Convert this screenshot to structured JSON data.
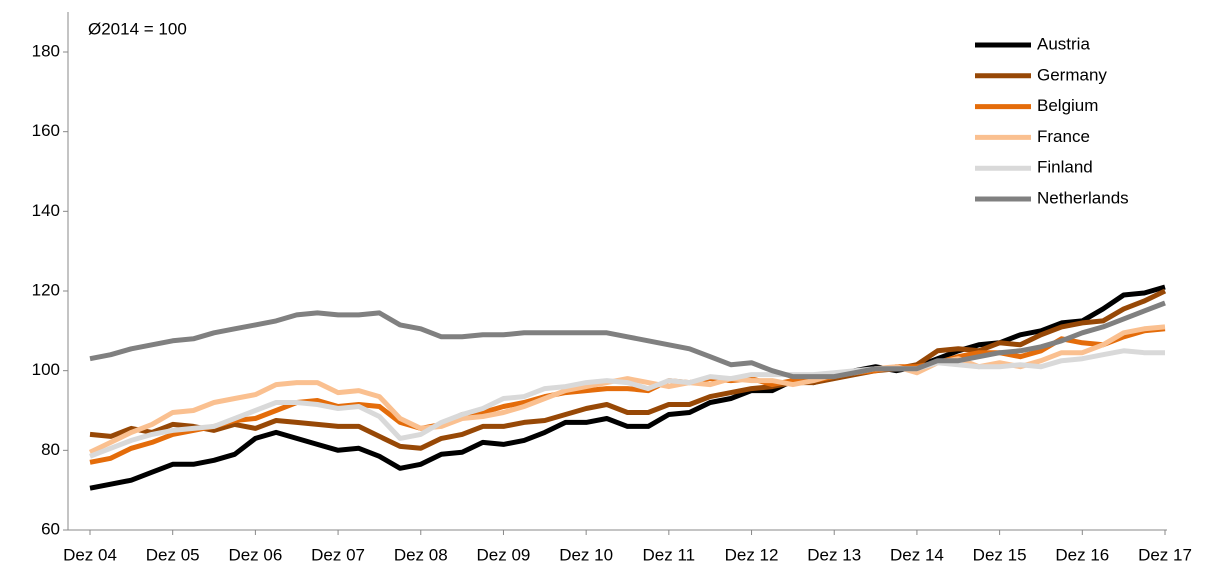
{
  "chart_data": {
    "type": "line",
    "annotation": "Ø2014 = 100",
    "categories": [
      "Dez 04",
      null,
      null,
      null,
      "Dez 05",
      null,
      null,
      null,
      "Dez 06",
      null,
      null,
      null,
      "Dez 07",
      null,
      null,
      null,
      "Dez 08",
      null,
      null,
      null,
      "Dez 09",
      null,
      null,
      null,
      "Dez 10",
      null,
      null,
      null,
      "Dez 11",
      null,
      null,
      null,
      "Dez 12",
      null,
      null,
      null,
      "Dez 13",
      null,
      null,
      null,
      "Dez 14",
      null,
      null,
      null,
      "Dez 15",
      null,
      null,
      null,
      "Dez 16",
      null,
      null,
      null,
      "Dez 17"
    ],
    "series": [
      {
        "name": "Austria",
        "color": "#000000",
        "values": [
          70.5,
          71.5,
          72.5,
          74.5,
          76.5,
          76.5,
          77.5,
          79,
          83,
          84.5,
          83,
          81.5,
          80,
          80.5,
          78.5,
          75.5,
          76.5,
          79,
          79.5,
          82,
          81.5,
          82.5,
          84.5,
          87,
          87,
          88,
          86,
          86,
          89,
          89.5,
          92,
          93,
          95,
          95,
          97.5,
          97,
          98.5,
          100,
          101,
          100,
          101,
          103,
          105,
          106.5,
          107,
          109,
          110,
          112,
          112.5,
          115.5,
          119,
          119.5,
          121
        ]
      },
      {
        "name": "Germany",
        "color": "#974806",
        "values": [
          84,
          83.5,
          85.5,
          84.5,
          86.5,
          86,
          85,
          86.5,
          85.5,
          87.5,
          87,
          86.5,
          86,
          86,
          83.5,
          81,
          80.5,
          83,
          84,
          86,
          86,
          87,
          87.5,
          89,
          90.5,
          91.5,
          89.5,
          89.5,
          91.5,
          91.5,
          93.5,
          94.5,
          95.5,
          96,
          97,
          97,
          98,
          99,
          100,
          100.5,
          101.5,
          105,
          105.5,
          105,
          107,
          106.5,
          109,
          111,
          112,
          112.5,
          115.5,
          117.5,
          120
        ]
      },
      {
        "name": "Belgium",
        "color": "#e46c0a",
        "values": [
          77,
          78,
          80.5,
          82,
          84,
          85,
          86,
          87.5,
          88,
          90,
          92,
          92.5,
          91,
          91.5,
          91,
          87,
          85.5,
          86.5,
          89,
          89.5,
          91,
          92,
          93.5,
          94.5,
          95,
          95.5,
          95.5,
          95,
          97.5,
          97,
          98,
          97.5,
          98,
          96.5,
          97.5,
          97.5,
          98.5,
          99.5,
          100,
          101,
          101,
          102,
          103.5,
          104.5,
          104.5,
          103.5,
          105,
          108,
          107,
          106.5,
          108.5,
          110,
          110.5
        ]
      },
      {
        "name": "France",
        "color": "#fac090",
        "values": [
          79.5,
          82,
          84.5,
          86.5,
          89.5,
          90,
          92,
          93,
          94,
          96.5,
          97,
          97,
          94.5,
          95,
          93.5,
          88,
          85.5,
          86,
          88,
          88.5,
          89.5,
          91,
          93,
          95,
          96,
          97,
          98,
          97,
          96,
          97,
          96.5,
          98,
          97.5,
          97.5,
          96.5,
          97.5,
          99,
          99.5,
          100.5,
          101,
          99.5,
          102,
          103,
          101,
          102,
          101,
          102.5,
          104.5,
          104.5,
          106.5,
          109.5,
          110.5,
          111
        ]
      },
      {
        "name": "Finland",
        "color": "#d9d9d9",
        "values": [
          78.5,
          80.5,
          82.5,
          84,
          85,
          85.5,
          86,
          88,
          90,
          92,
          92,
          91.5,
          90.5,
          91,
          88.5,
          83,
          84,
          87,
          89,
          90.5,
          93,
          93.5,
          95.5,
          96,
          97,
          97.5,
          97,
          95.5,
          97.5,
          97,
          98.5,
          98,
          99,
          99,
          99,
          99,
          99.5,
          100,
          100.5,
          100.5,
          100.5,
          102,
          101.5,
          101,
          101,
          101.5,
          101,
          102.5,
          103,
          104,
          105,
          104.5,
          104.5
        ]
      },
      {
        "name": "Netherlands",
        "color": "#808080",
        "values": [
          103,
          104,
          105.5,
          106.5,
          107.5,
          108,
          109.5,
          110.5,
          111.5,
          112.5,
          114,
          114.5,
          114,
          114,
          114.5,
          111.5,
          110.5,
          108.5,
          108.5,
          109,
          109,
          109.5,
          109.5,
          109.5,
          109.5,
          109.5,
          108.5,
          107.5,
          106.5,
          105.5,
          103.5,
          101.5,
          102,
          100,
          98.5,
          98.5,
          98.5,
          99.5,
          100.5,
          100.5,
          100.5,
          102.5,
          102.5,
          103.5,
          104.5,
          105,
          106,
          107.5,
          109.5,
          111,
          113,
          115,
          117
        ]
      }
    ],
    "ylim": [
      60,
      180
    ],
    "yticks": [
      60,
      80,
      100,
      120,
      140,
      160,
      180
    ],
    "grid": false,
    "legend": "top-right"
  }
}
